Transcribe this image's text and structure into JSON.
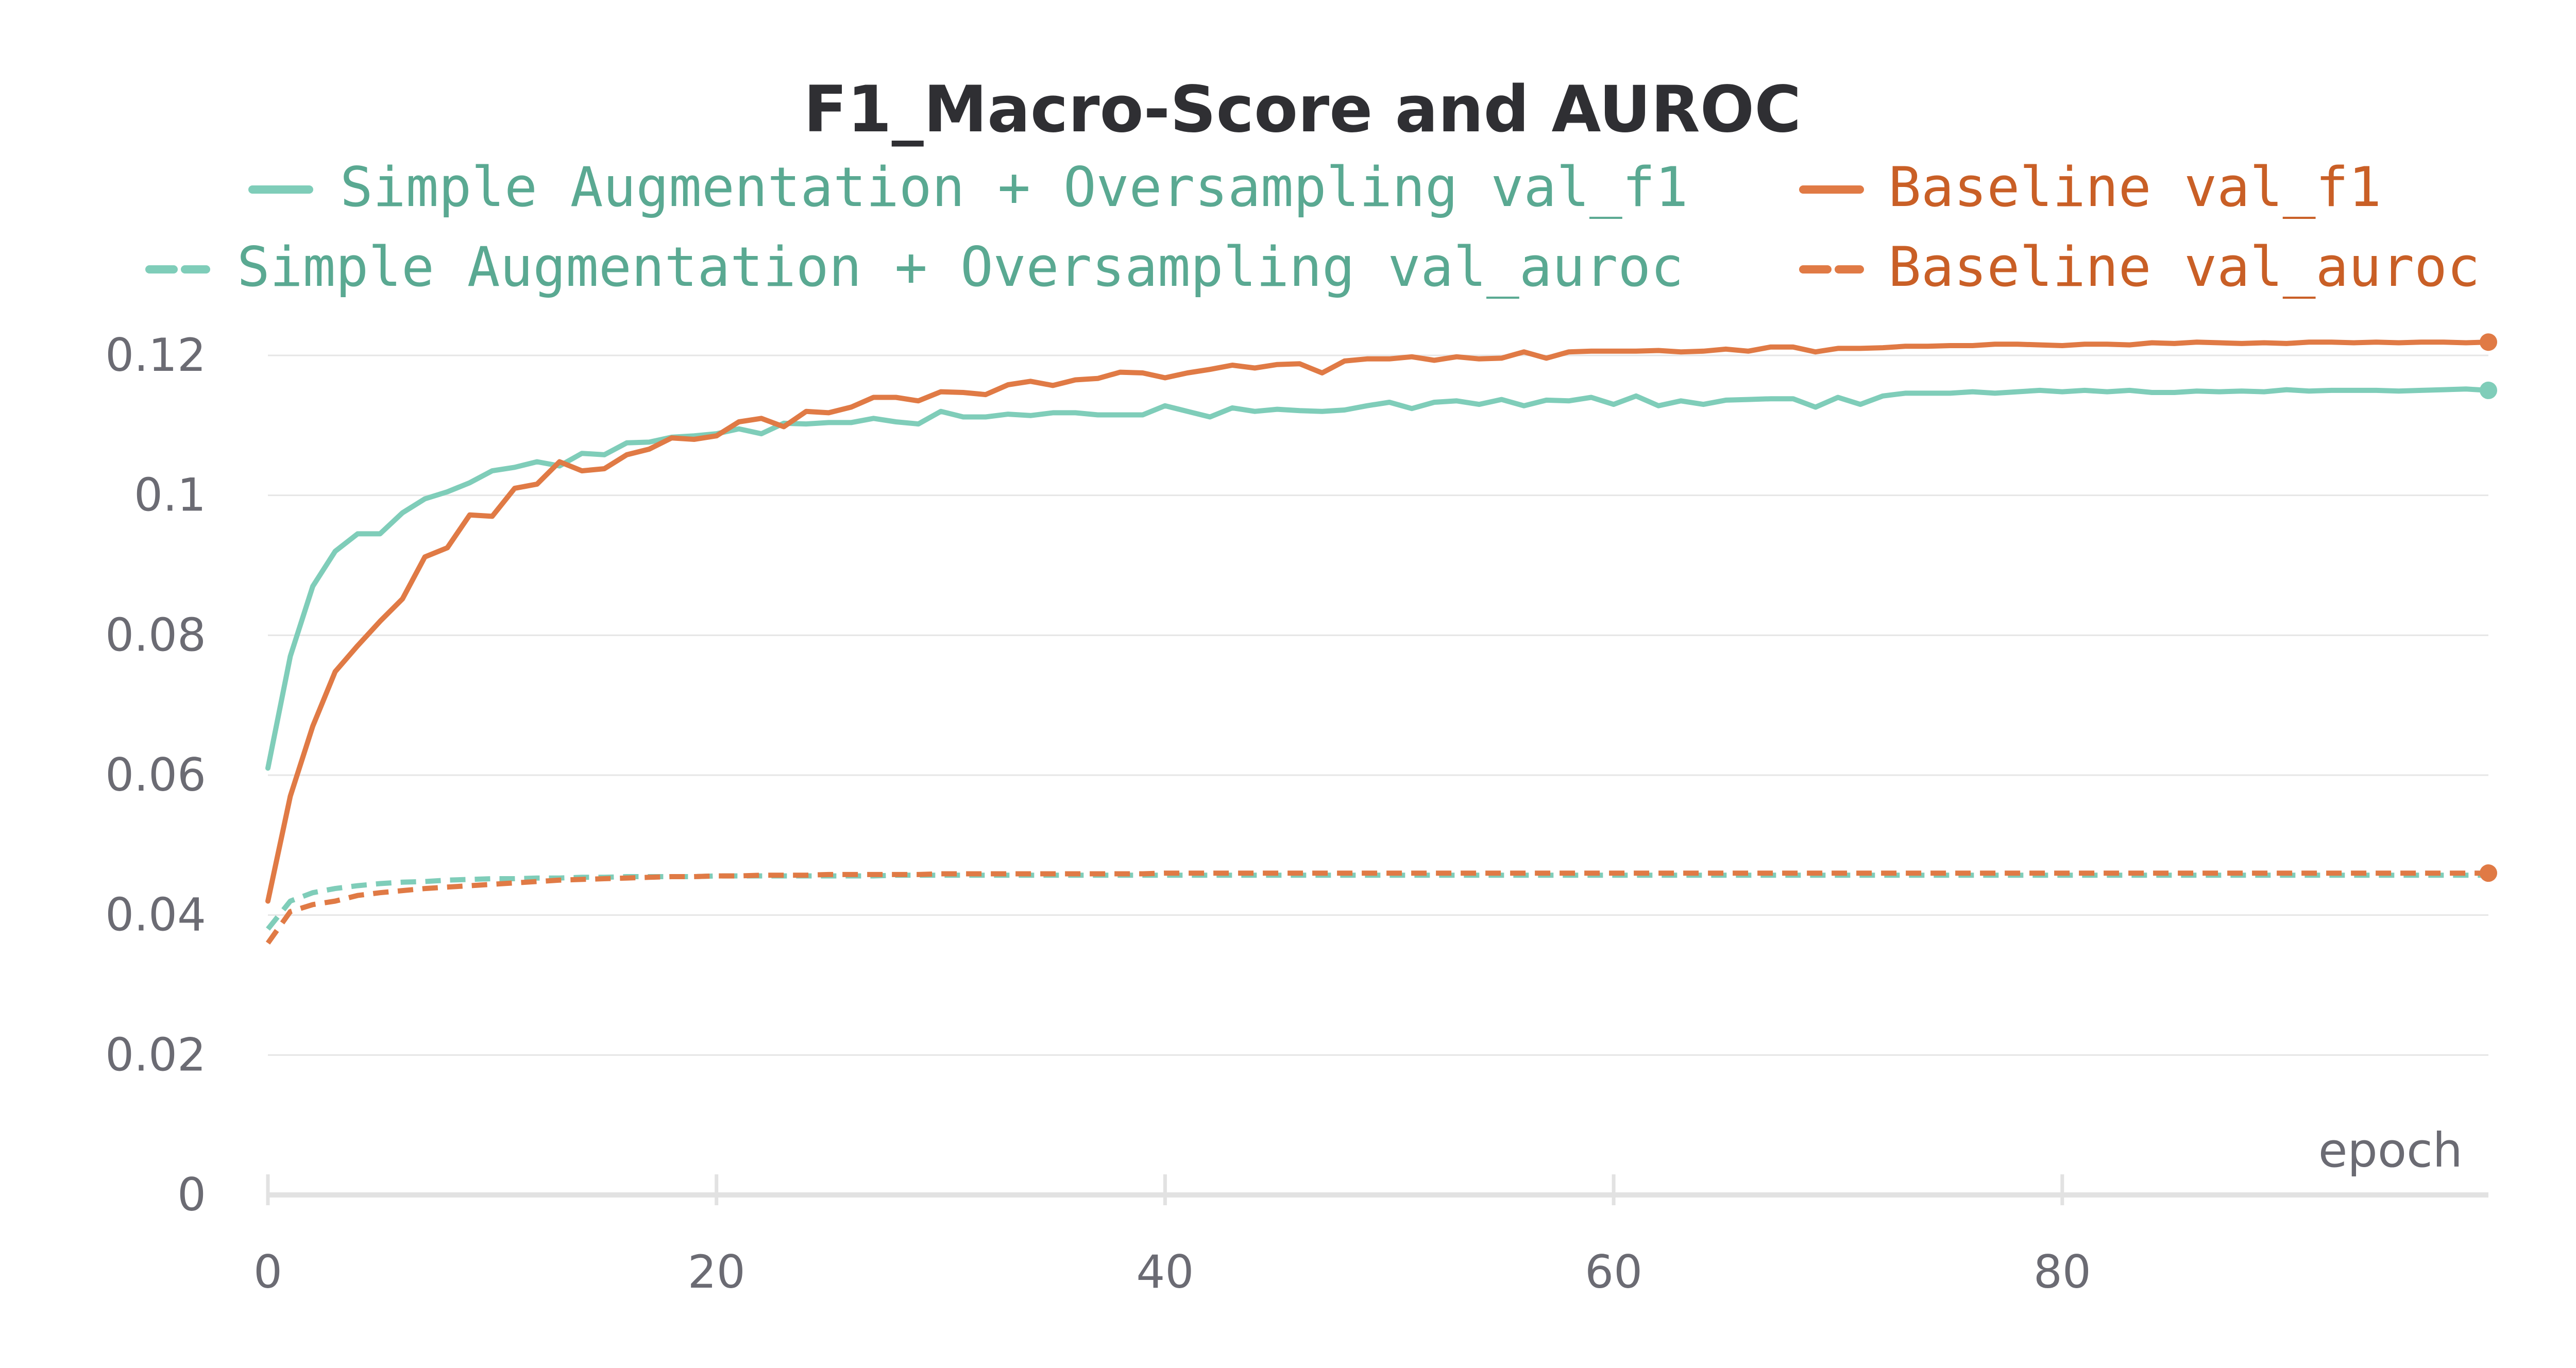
{
  "chart_data": {
    "type": "line",
    "title": "F1_Macro-Score and AUROC",
    "xlabel": "epoch",
    "ylabel": "",
    "xlim": [
      0,
      99
    ],
    "ylim": [
      0,
      0.12
    ],
    "xticks": [
      0,
      20,
      40,
      60,
      80
    ],
    "xtick_labels": [
      "0",
      "20",
      "40",
      "60",
      "80"
    ],
    "yticks": [
      0,
      0.02,
      0.04,
      0.06,
      0.08,
      0.1,
      0.12
    ],
    "ytick_labels": [
      "0",
      "0.02",
      "0.04",
      "0.06",
      "0.08",
      "0.1",
      "0.12"
    ],
    "grid": true,
    "legend_position": "top",
    "x": [
      0,
      1,
      2,
      3,
      4,
      5,
      6,
      7,
      8,
      9,
      10,
      11,
      12,
      13,
      14,
      15,
      16,
      17,
      18,
      19,
      20,
      21,
      22,
      23,
      24,
      25,
      26,
      27,
      28,
      29,
      30,
      31,
      32,
      33,
      34,
      35,
      36,
      37,
      38,
      39,
      40,
      41,
      42,
      43,
      44,
      45,
      46,
      47,
      48,
      49,
      50,
      51,
      52,
      53,
      54,
      55,
      56,
      57,
      58,
      59,
      60,
      61,
      62,
      63,
      64,
      65,
      66,
      67,
      68,
      69,
      70,
      71,
      72,
      73,
      74,
      75,
      76,
      77,
      78,
      79,
      80,
      81,
      82,
      83,
      84,
      85,
      86,
      87,
      88,
      89,
      90,
      91,
      92,
      93,
      94,
      95,
      96,
      97,
      98,
      99
    ],
    "series": [
      {
        "name": "Simple Augmentation + Oversampling val_f1",
        "color": "#7fcdb9",
        "text_color": "#5aa992",
        "dash": false,
        "end_marker": true,
        "values": [
          0.061,
          0.077,
          0.087,
          0.092,
          0.0945,
          0.0945,
          0.0975,
          0.0995,
          0.1005,
          0.1018,
          0.1035,
          0.104,
          0.1048,
          0.1042,
          0.106,
          0.1058,
          0.1075,
          0.1076,
          0.1083,
          0.1085,
          0.1088,
          0.1095,
          0.1088,
          0.1103,
          0.1102,
          0.1104,
          0.1104,
          0.111,
          0.1105,
          0.1102,
          0.112,
          0.1112,
          0.1112,
          0.1116,
          0.1114,
          0.1118,
          0.1118,
          0.1115,
          0.1115,
          0.1115,
          0.1128,
          0.112,
          0.1112,
          0.1125,
          0.112,
          0.1123,
          0.1121,
          0.112,
          0.1122,
          0.1128,
          0.1133,
          0.1124,
          0.1133,
          0.1135,
          0.113,
          0.1137,
          0.1128,
          0.1136,
          0.1135,
          0.114,
          0.113,
          0.1142,
          0.1128,
          0.1135,
          0.113,
          0.1136,
          0.1137,
          0.1138,
          0.1138,
          0.1126,
          0.114,
          0.113,
          0.1142,
          0.1146,
          0.1146,
          0.1146,
          0.1148,
          0.1146,
          0.1148,
          0.115,
          0.1148,
          0.115,
          0.1148,
          0.115,
          0.1147,
          0.1147,
          0.1149,
          0.1148,
          0.1149,
          0.1148,
          0.1151,
          0.1149,
          0.115,
          0.115,
          0.115,
          0.1149,
          0.115,
          0.1151,
          0.1152,
          0.115
        ]
      },
      {
        "name": "Baseline val_f1",
        "color": "#e07a45",
        "text_color": "#c95f26",
        "dash": false,
        "end_marker": true,
        "values": [
          0.042,
          0.057,
          0.067,
          0.0748,
          0.0785,
          0.082,
          0.0852,
          0.0912,
          0.0925,
          0.0972,
          0.097,
          0.101,
          0.1016,
          0.1048,
          0.1035,
          0.1038,
          0.1058,
          0.1066,
          0.1082,
          0.108,
          0.1085,
          0.1105,
          0.111,
          0.1098,
          0.112,
          0.1118,
          0.1126,
          0.114,
          0.114,
          0.1135,
          0.1148,
          0.1147,
          0.1144,
          0.1158,
          0.1163,
          0.1157,
          0.1165,
          0.1167,
          0.1176,
          0.1175,
          0.1168,
          0.1175,
          0.118,
          0.1186,
          0.1182,
          0.1187,
          0.1188,
          0.1175,
          0.1192,
          0.1195,
          0.1195,
          0.1198,
          0.1193,
          0.1198,
          0.1195,
          0.1196,
          0.1205,
          0.1196,
          0.1205,
          0.1206,
          0.1206,
          0.1206,
          0.1207,
          0.1205,
          0.1206,
          0.1209,
          0.1206,
          0.1212,
          0.1212,
          0.1205,
          0.121,
          0.121,
          0.1211,
          0.1213,
          0.1213,
          0.1214,
          0.1214,
          0.1216,
          0.1216,
          0.1215,
          0.1214,
          0.1216,
          0.1216,
          0.1215,
          0.1218,
          0.1217,
          0.1219,
          0.1218,
          0.1217,
          0.1218,
          0.1217,
          0.1219,
          0.1219,
          0.1218,
          0.1219,
          0.1218,
          0.1219,
          0.1219,
          0.1218,
          0.1219
        ]
      },
      {
        "name": "Simple Augmentation + Oversampling val_auroc",
        "color": "#7fcdb9",
        "text_color": "#5aa992",
        "dash": true,
        "end_marker": false,
        "values": [
          0.038,
          0.042,
          0.0432,
          0.0438,
          0.0442,
          0.0445,
          0.0447,
          0.0448,
          0.045,
          0.0451,
          0.0452,
          0.0452,
          0.0453,
          0.0453,
          0.0454,
          0.0454,
          0.0455,
          0.0455,
          0.0455,
          0.0455,
          0.0456,
          0.0456,
          0.0456,
          0.0456,
          0.0456,
          0.0456,
          0.0456,
          0.0456,
          0.0457,
          0.0457,
          0.0457,
          0.0457,
          0.0457,
          0.0457,
          0.0457,
          0.0457,
          0.0457,
          0.0457,
          0.0457,
          0.0457,
          0.0457,
          0.0457,
          0.0457,
          0.0457,
          0.0457,
          0.0457,
          0.0457,
          0.0457,
          0.0457,
          0.0457,
          0.0457,
          0.0457,
          0.0457,
          0.0457,
          0.0457,
          0.0457,
          0.0457,
          0.0457,
          0.0457,
          0.0457,
          0.0457,
          0.0457,
          0.0457,
          0.0457,
          0.0457,
          0.0457,
          0.0457,
          0.0457,
          0.0457,
          0.0457,
          0.0457,
          0.0457,
          0.0457,
          0.0457,
          0.0457,
          0.0457,
          0.0457,
          0.0457,
          0.0457,
          0.0457,
          0.0457,
          0.0457,
          0.0457,
          0.0457,
          0.0457,
          0.0457,
          0.0457,
          0.0457,
          0.0457,
          0.0457,
          0.0457,
          0.0457,
          0.0457,
          0.0457,
          0.0457,
          0.0457,
          0.0457,
          0.0457,
          0.0457,
          0.0457
        ]
      },
      {
        "name": "Baseline val_auroc",
        "color": "#e07a45",
        "text_color": "#c95f26",
        "dash": true,
        "end_marker": true,
        "values": [
          0.036,
          0.0405,
          0.0415,
          0.042,
          0.0428,
          0.0432,
          0.0435,
          0.0438,
          0.044,
          0.0442,
          0.0444,
          0.0446,
          0.0448,
          0.045,
          0.0451,
          0.0452,
          0.0453,
          0.0454,
          0.0455,
          0.0455,
          0.0456,
          0.0456,
          0.0457,
          0.0457,
          0.0457,
          0.0458,
          0.0458,
          0.0458,
          0.0458,
          0.0458,
          0.0459,
          0.0459,
          0.0459,
          0.0459,
          0.0459,
          0.0459,
          0.0459,
          0.0459,
          0.0459,
          0.0459,
          0.046,
          0.046,
          0.046,
          0.046,
          0.046,
          0.046,
          0.046,
          0.046,
          0.046,
          0.046,
          0.046,
          0.046,
          0.046,
          0.046,
          0.046,
          0.046,
          0.046,
          0.046,
          0.046,
          0.046,
          0.046,
          0.046,
          0.046,
          0.046,
          0.046,
          0.046,
          0.046,
          0.046,
          0.046,
          0.046,
          0.046,
          0.046,
          0.046,
          0.046,
          0.046,
          0.046,
          0.046,
          0.046,
          0.046,
          0.046,
          0.046,
          0.046,
          0.046,
          0.046,
          0.046,
          0.046,
          0.046,
          0.046,
          0.046,
          0.046,
          0.046,
          0.046,
          0.046,
          0.046,
          0.046,
          0.046,
          0.046,
          0.046,
          0.046,
          0.046
        ]
      }
    ]
  }
}
